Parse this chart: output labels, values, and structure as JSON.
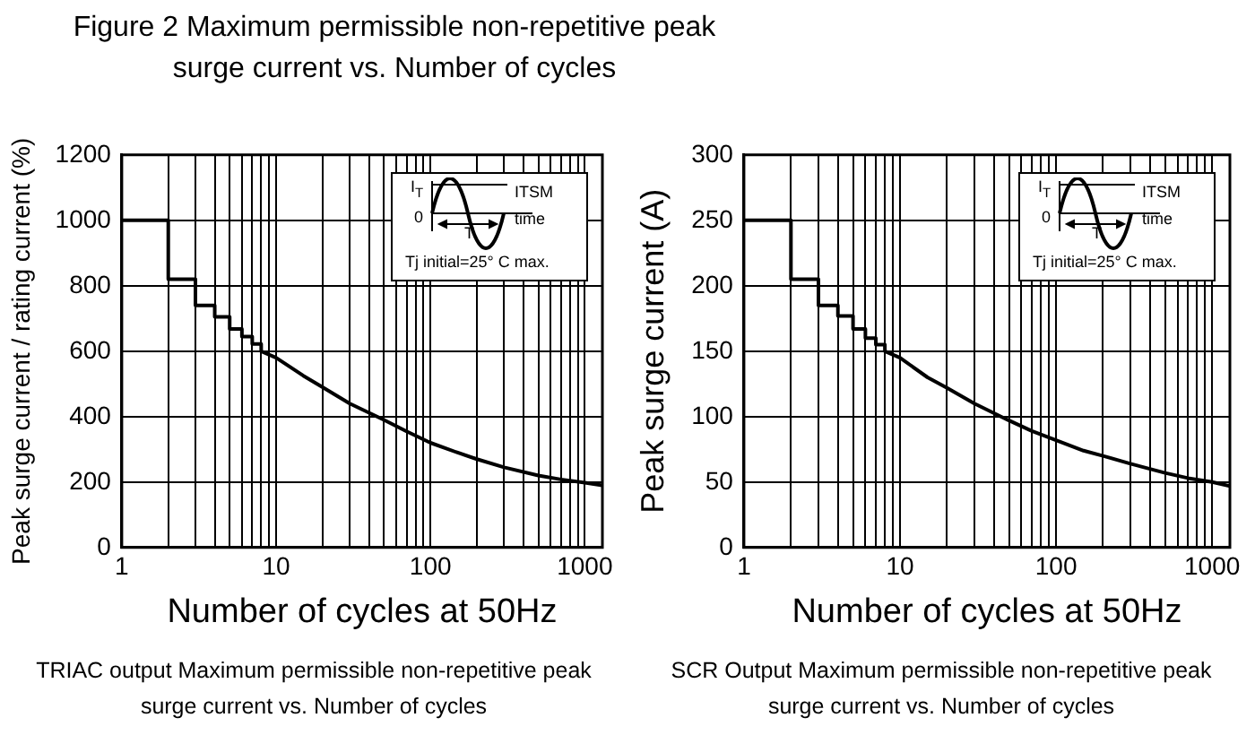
{
  "chart_data": [
    {
      "type": "line",
      "title": "Figure 2  Maximum permissible non-repetitive peak surge current vs. Number of cycles",
      "xlabel": "Number of cycles at 50Hz",
      "ylabel": "Peak surge current / rating current (%)",
      "log": "x",
      "grid": true,
      "marker": "none",
      "xlim": [
        1,
        1300
      ],
      "xticks": [
        1,
        {
          "value": 2,
          "label": null
        },
        {
          "value": 3,
          "label": null
        },
        {
          "value": 4,
          "label": null
        },
        {
          "value": 5,
          "label": null
        },
        {
          "value": 6,
          "label": null
        },
        {
          "value": 7,
          "label": null
        },
        {
          "value": 8,
          "label": null
        },
        {
          "value": 9,
          "label": null
        },
        10,
        {
          "value": 20,
          "label": null
        },
        {
          "value": 30,
          "label": null
        },
        {
          "value": 40,
          "label": null
        },
        {
          "value": 50,
          "label": null
        },
        {
          "value": 60,
          "label": null
        },
        {
          "value": 70,
          "label": null
        },
        {
          "value": 80,
          "label": null
        },
        {
          "value": 90,
          "label": null
        },
        100,
        {
          "value": 200,
          "label": null
        },
        {
          "value": 300,
          "label": null
        },
        {
          "value": 400,
          "label": null
        },
        {
          "value": 500,
          "label": null
        },
        {
          "value": 600,
          "label": null
        },
        {
          "value": 700,
          "label": null
        },
        {
          "value": 800,
          "label": null
        },
        {
          "value": 900,
          "label": null
        },
        1000
      ],
      "ylim": [
        0,
        1200
      ],
      "yticks": [
        0,
        200,
        400,
        600,
        800,
        1000,
        1200
      ],
      "series": [
        {
          "color": "#000000",
          "x": [
            1,
            2,
            2,
            3,
            3,
            4,
            4,
            5,
            5,
            6,
            6,
            7,
            7,
            8,
            8,
            10,
            15,
            20,
            30,
            50,
            70,
            100,
            150,
            200,
            300,
            500,
            700,
            1000,
            1300
          ],
          "values": [
            1000,
            1000,
            820,
            820,
            740,
            740,
            705,
            705,
            668,
            668,
            645,
            645,
            622,
            622,
            600,
            580,
            525,
            490,
            440,
            390,
            355,
            320,
            290,
            270,
            245,
            220,
            208,
            198,
            190
          ]
        }
      ],
      "annotations": [
        "I$_{T}$",
        "ITSM",
        "0",
        "T",
        "time",
        "Tj initial=25°  C max.",
        "TRIAC output Maximum permissible non-repetitive peak surge current vs. Number of cycles"
      ]
    },
    {
      "type": "line",
      "xlabel": "Number of cycles at 50Hz",
      "ylabel": "Peak surge current (A)",
      "log": "x",
      "grid": true,
      "marker": "none",
      "xlim": [
        1,
        1300
      ],
      "xticks": [
        1,
        {
          "value": 2,
          "label": null
        },
        {
          "value": 3,
          "label": null
        },
        {
          "value": 4,
          "label": null
        },
        {
          "value": 5,
          "label": null
        },
        {
          "value": 6,
          "label": null
        },
        {
          "value": 7,
          "label": null
        },
        {
          "value": 8,
          "label": null
        },
        {
          "value": 9,
          "label": null
        },
        10,
        {
          "value": 20,
          "label": null
        },
        {
          "value": 30,
          "label": null
        },
        {
          "value": 40,
          "label": null
        },
        {
          "value": 50,
          "label": null
        },
        {
          "value": 60,
          "label": null
        },
        {
          "value": 70,
          "label": null
        },
        {
          "value": 80,
          "label": null
        },
        {
          "value": 90,
          "label": null
        },
        100,
        {
          "value": 200,
          "label": null
        },
        {
          "value": 300,
          "label": null
        },
        {
          "value": 400,
          "label": null
        },
        {
          "value": 500,
          "label": null
        },
        {
          "value": 600,
          "label": null
        },
        {
          "value": 700,
          "label": null
        },
        {
          "value": 800,
          "label": null
        },
        {
          "value": 900,
          "label": null
        },
        1000
      ],
      "ylim": [
        0,
        300
      ],
      "yticks": [
        0,
        50,
        100,
        150,
        200,
        250,
        300
      ],
      "series": [
        {
          "color": "#000000",
          "x": [
            1,
            2,
            2,
            3,
            3,
            4,
            4,
            5,
            5,
            6,
            6,
            7,
            7,
            8,
            8,
            10,
            15,
            20,
            30,
            50,
            70,
            100,
            150,
            200,
            300,
            500,
            700,
            1000,
            1300
          ],
          "values": [
            250,
            250,
            205,
            205,
            185,
            185,
            177,
            177,
            167,
            167,
            160,
            160,
            155,
            155,
            150,
            145,
            130,
            122,
            110,
            97,
            89,
            82,
            74,
            70,
            64,
            57,
            53,
            50,
            47
          ]
        }
      ],
      "annotations": [
        "I$_{T}$",
        "ITSM",
        "0",
        "T",
        "time",
        "Tj initial=25°  C max.",
        "SCR Output Maximum permissible non-repetitive peak surge current vs. Number of cycles"
      ]
    }
  ]
}
